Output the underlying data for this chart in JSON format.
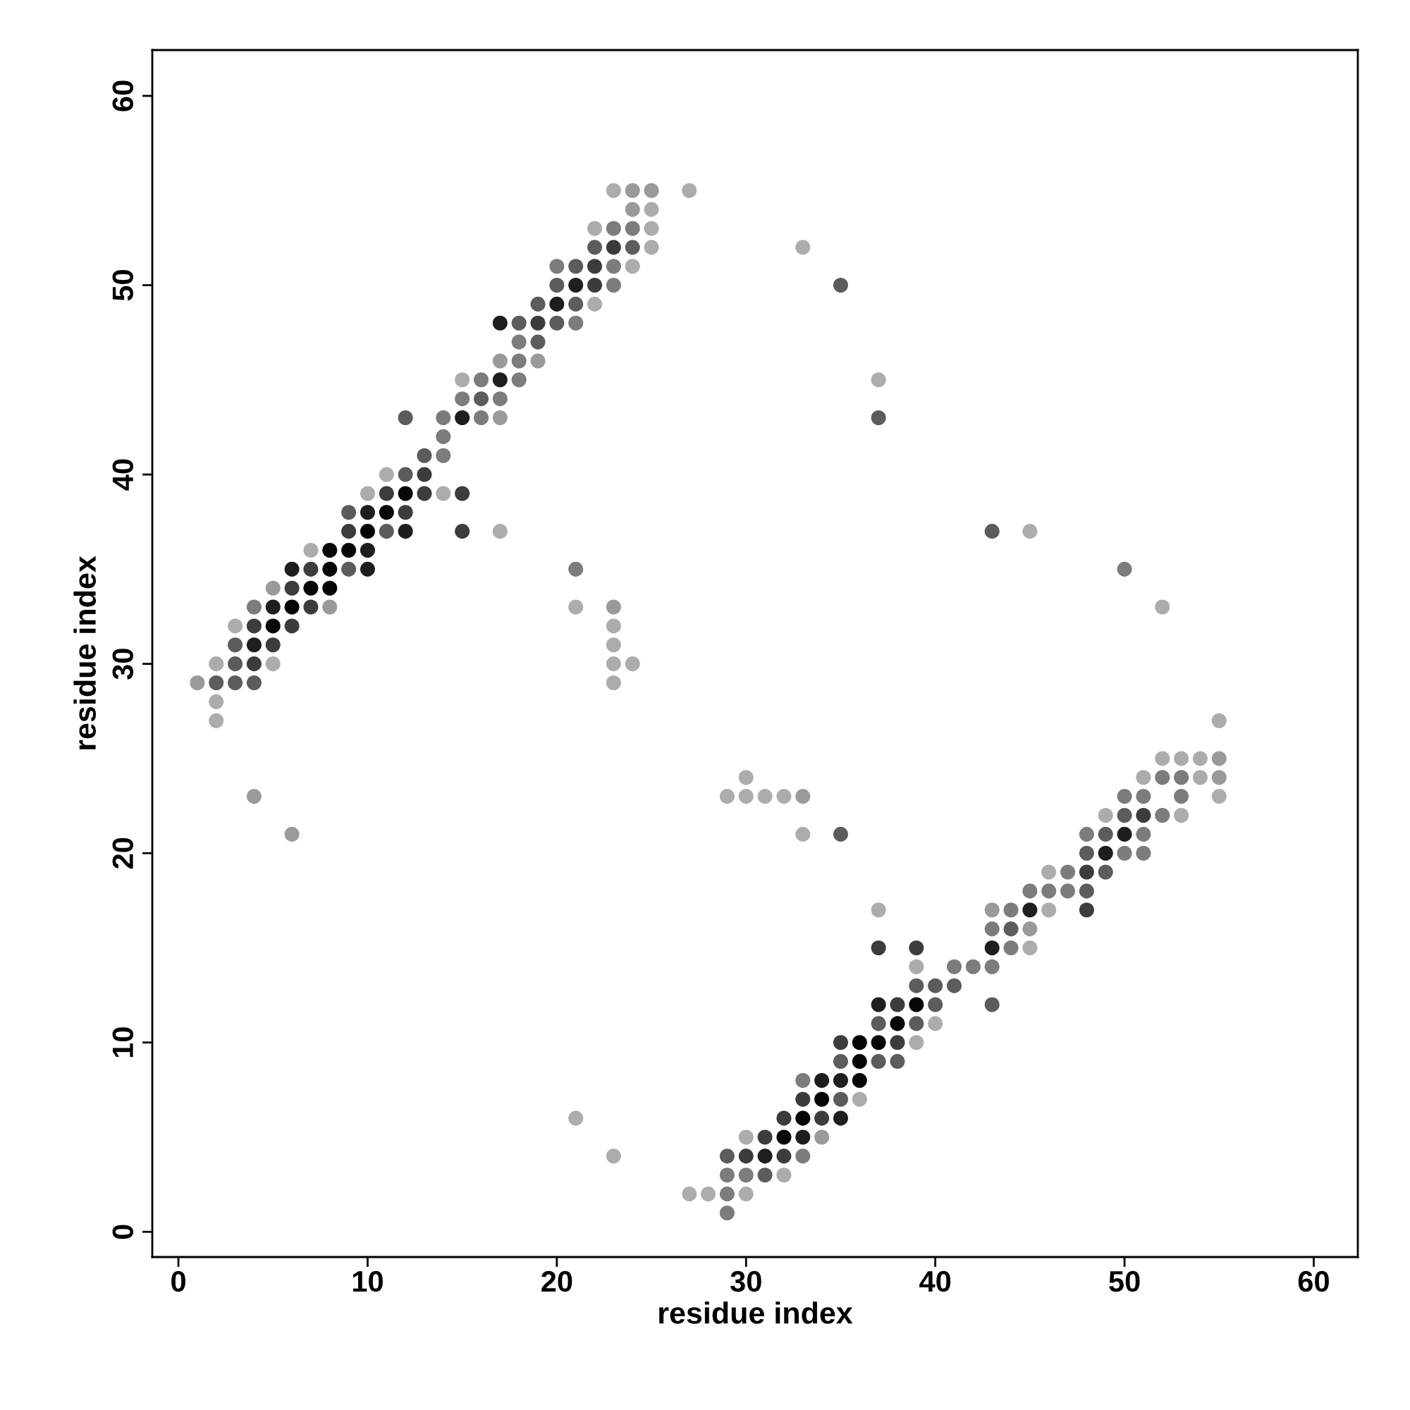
{
  "chart_data": {
    "type": "scatter",
    "xlabel": "residue index",
    "ylabel": "residue index",
    "xlim": [
      -1.38,
      62.33
    ],
    "ylim": [
      -1.33,
      62.42
    ],
    "xticks": [
      0,
      10,
      20,
      30,
      40,
      50,
      60
    ],
    "yticks": [
      0,
      10,
      20,
      30,
      40,
      50,
      60
    ],
    "grid": false,
    "legend": false,
    "marker": "circle",
    "series": [
      {
        "color": "#acacac",
        "x": [
          23,
          27,
          25,
          22,
          25,
          25,
          24,
          22,
          15,
          11,
          10,
          14,
          17,
          7,
          3,
          2,
          5,
          2,
          2,
          21,
          23,
          23,
          23,
          24,
          23,
          33,
          37,
          45,
          52,
          21,
          23,
          55,
          52,
          53,
          54,
          30,
          51,
          54,
          29,
          30,
          31,
          32,
          55,
          49,
          53,
          33,
          46,
          37,
          46,
          45,
          39,
          40,
          39,
          36,
          30,
          32,
          27,
          28,
          30
        ],
        "values": [
          55,
          55,
          54,
          53,
          53,
          52,
          51,
          49,
          45,
          40,
          39,
          39,
          37,
          36,
          32,
          30,
          30,
          28,
          27,
          33,
          32,
          31,
          30,
          30,
          29,
          52,
          45,
          37,
          33,
          6,
          4,
          27,
          25,
          25,
          25,
          24,
          24,
          24,
          23,
          23,
          23,
          23,
          23,
          22,
          22,
          21,
          19,
          17,
          17,
          15,
          14,
          11,
          10,
          7,
          5,
          3,
          2,
          2,
          2
        ]
      },
      {
        "color": "#9a9a9a",
        "x": [
          24,
          25,
          24,
          17,
          19,
          17,
          5,
          8,
          1,
          23,
          4,
          6,
          55,
          55,
          33,
          43,
          45,
          34
        ],
        "values": [
          55,
          55,
          54,
          46,
          46,
          43,
          34,
          33,
          29,
          33,
          23,
          21,
          25,
          24,
          23,
          17,
          16,
          5
        ]
      },
      {
        "color": "#7c7c7c",
        "x": [
          23,
          24,
          20,
          23,
          23,
          21,
          18,
          18,
          16,
          18,
          15,
          17,
          14,
          16,
          14,
          14,
          4,
          21,
          50,
          52,
          53,
          50,
          51,
          53,
          52,
          48,
          51,
          50,
          51,
          47,
          45,
          46,
          47,
          44,
          43,
          44,
          41,
          42,
          43,
          33,
          33,
          29,
          30,
          29,
          29
        ],
        "values": [
          53,
          53,
          51,
          51,
          50,
          48,
          47,
          46,
          45,
          45,
          44,
          44,
          43,
          43,
          42,
          41,
          33,
          35,
          35,
          24,
          24,
          23,
          23,
          23,
          22,
          21,
          21,
          20,
          20,
          19,
          18,
          18,
          18,
          17,
          16,
          15,
          14,
          14,
          14,
          8,
          4,
          3,
          3,
          2,
          1
        ]
      },
      {
        "color": "#5c5c5c",
        "x": [
          22,
          24,
          21,
          20,
          19,
          21,
          18,
          20,
          19,
          16,
          12,
          13,
          12,
          9,
          11,
          9,
          3,
          3,
          2,
          3,
          4,
          35,
          37,
          43,
          50,
          35,
          49,
          48,
          49,
          48,
          44,
          39,
          40,
          41,
          40,
          43,
          37,
          39,
          35,
          37,
          38,
          35,
          31,
          29
        ],
        "values": [
          52,
          52,
          51,
          50,
          49,
          49,
          48,
          48,
          47,
          44,
          43,
          41,
          40,
          38,
          37,
          35,
          31,
          30,
          29,
          29,
          29,
          50,
          43,
          37,
          22,
          21,
          21,
          20,
          19,
          18,
          16,
          13,
          13,
          13,
          12,
          12,
          11,
          11,
          9,
          9,
          9,
          7,
          3,
          4
        ]
      },
      {
        "color": "#3c3c3c",
        "x": [
          23,
          22,
          22,
          19,
          13,
          11,
          13,
          15,
          12,
          9,
          15,
          7,
          6,
          7,
          4,
          6,
          5,
          4,
          51,
          48,
          48,
          37,
          39,
          38,
          35,
          38,
          33,
          32,
          34,
          31,
          30,
          32
        ],
        "values": [
          52,
          51,
          50,
          48,
          40,
          39,
          39,
          39,
          38,
          37,
          37,
          35,
          34,
          33,
          32,
          32,
          31,
          30,
          22,
          19,
          17,
          15,
          15,
          12,
          10,
          10,
          7,
          6,
          6,
          5,
          4,
          4
        ]
      },
      {
        "color": "#1e1e1e",
        "x": [
          21,
          20,
          17,
          17,
          15,
          10,
          12,
          10,
          6,
          10,
          5,
          4,
          50,
          49,
          45,
          43,
          37,
          34,
          35,
          35,
          33,
          31
        ],
        "values": [
          50,
          49,
          48,
          45,
          43,
          38,
          37,
          36,
          35,
          35,
          33,
          31,
          21,
          20,
          17,
          15,
          12,
          8,
          8,
          6,
          5,
          4
        ]
      },
      {
        "color": "#060606",
        "x": [
          12,
          11,
          10,
          8,
          9,
          8,
          7,
          8,
          6,
          5,
          39,
          38,
          36,
          37,
          36,
          36,
          34,
          33,
          32
        ],
        "values": [
          39,
          38,
          37,
          36,
          36,
          35,
          34,
          34,
          33,
          32,
          12,
          11,
          10,
          10,
          9,
          8,
          7,
          6,
          5
        ]
      }
    ]
  }
}
